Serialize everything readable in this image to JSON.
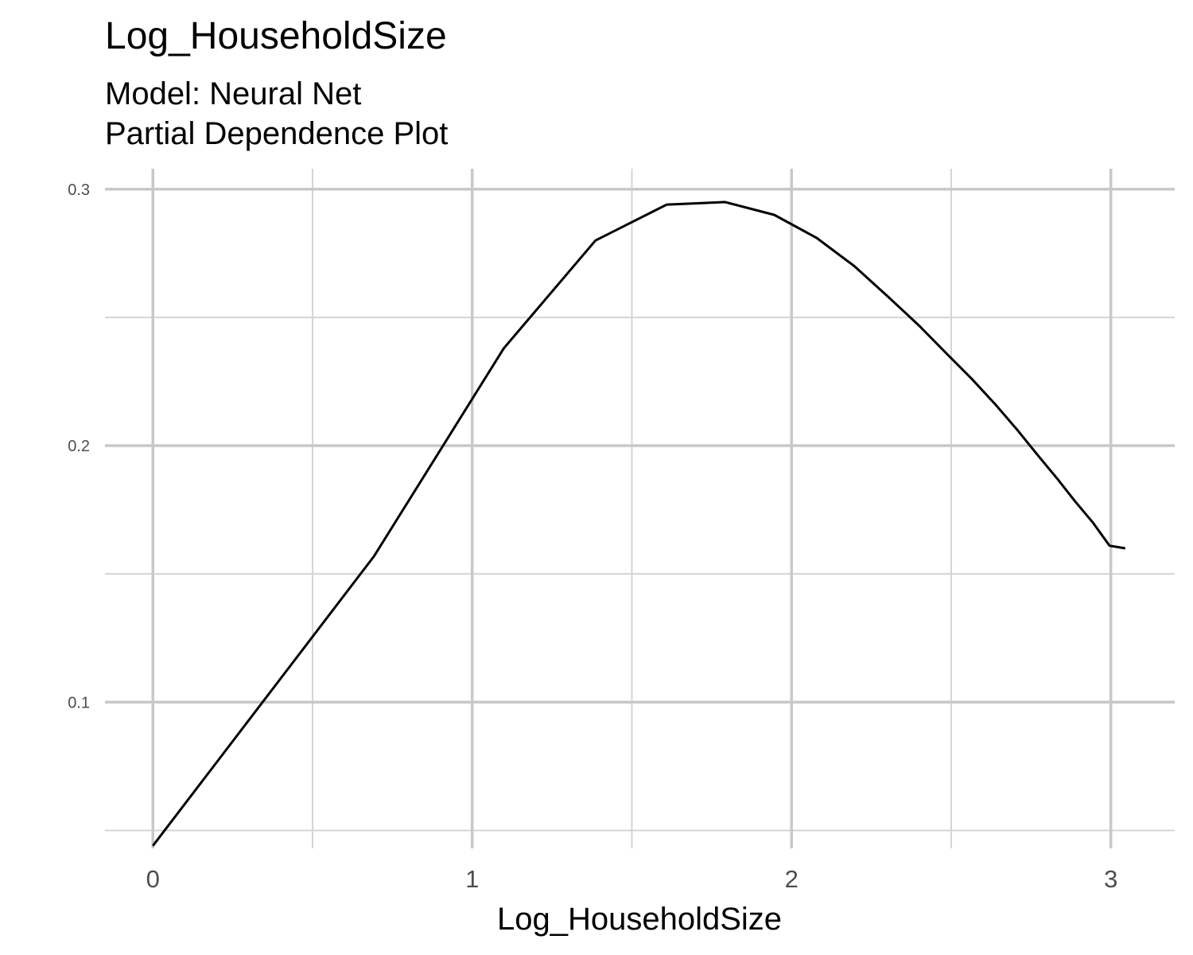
{
  "chart_data": {
    "type": "line",
    "title": "Log_HouseholdSize",
    "subtitle_lines": [
      "Model: Neural Net",
      "Partial Dependence Plot"
    ],
    "xlabel": "Log_HouseholdSize",
    "ylabel": "",
    "xlim": [
      -0.15,
      3.2
    ],
    "ylim": [
      0.043,
      0.308
    ],
    "x_ticks": [
      0,
      1,
      2,
      3
    ],
    "x_tick_labels": [
      "0",
      "1",
      "2",
      "3"
    ],
    "y_ticks": [
      0.1,
      0.2,
      0.3
    ],
    "y_tick_labels": [
      "0.1",
      "0.2",
      "0.3"
    ],
    "x_minor": [
      0.5,
      1.5,
      2.5
    ],
    "y_minor": [
      0.05,
      0.15,
      0.25
    ],
    "grid": true,
    "series": [
      {
        "color": "#000000",
        "x": [
          0.0,
          0.693,
          1.099,
          1.386,
          1.609,
          1.792,
          1.946,
          2.079,
          2.197,
          2.303,
          2.398,
          2.485,
          2.565,
          2.639,
          2.708,
          2.773,
          2.833,
          2.89,
          2.944,
          2.996,
          3.045
        ],
        "y": [
          0.044,
          0.157,
          0.238,
          0.28,
          0.294,
          0.295,
          0.29,
          0.281,
          0.27,
          0.258,
          0.247,
          0.236,
          0.226,
          0.216,
          0.206,
          0.196,
          0.187,
          0.178,
          0.17,
          0.161,
          0.16
        ]
      }
    ]
  }
}
